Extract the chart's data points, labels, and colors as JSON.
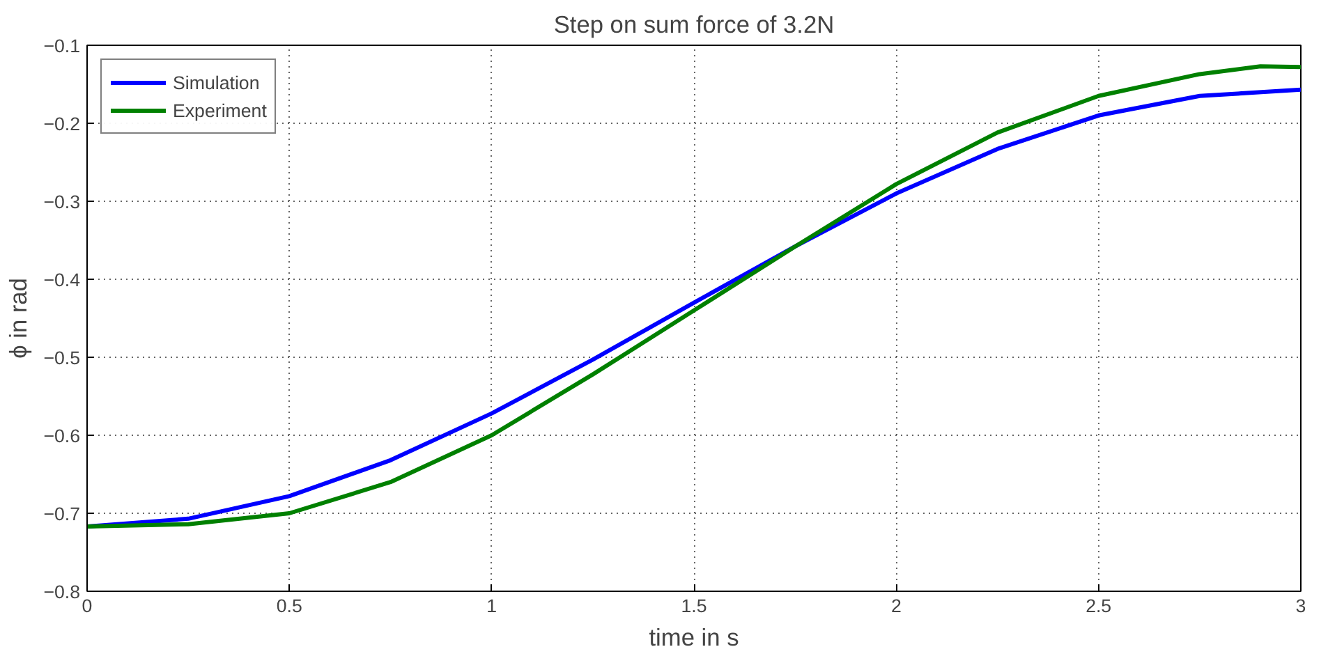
{
  "chart_data": {
    "type": "line",
    "title": "Step on sum force of 3.2N",
    "xlabel": "time in s",
    "ylabel": "ϕ in rad",
    "xlim": [
      0,
      3
    ],
    "xticks": [
      0,
      0.5,
      1,
      1.5,
      2,
      2.5,
      3
    ],
    "ylim": [
      -0.8,
      -0.1
    ],
    "yticks": [
      -0.8,
      -0.7,
      -0.6,
      -0.5,
      -0.4,
      -0.3,
      -0.2,
      -0.1
    ],
    "grid": true,
    "legend": "top left",
    "marker": "none",
    "line_style": "solid",
    "series": [
      {
        "name": "Simulation",
        "color": "#0000ff",
        "x": [
          0,
          0.25,
          0.5,
          0.75,
          1.0,
          1.25,
          1.5,
          1.75,
          2.0,
          2.25,
          2.5,
          2.75,
          3.0
        ],
        "values": [
          -0.717,
          -0.707,
          -0.678,
          -0.632,
          -0.572,
          -0.503,
          -0.43,
          -0.358,
          -0.29,
          -0.233,
          -0.19,
          -0.165,
          -0.157
        ]
      },
      {
        "name": "Experiment",
        "color": "#008000",
        "x": [
          0,
          0.25,
          0.5,
          0.75,
          1.0,
          1.25,
          1.5,
          1.75,
          2.0,
          2.25,
          2.5,
          2.75,
          2.9,
          3.0
        ],
        "values": [
          -0.717,
          -0.714,
          -0.7,
          -0.66,
          -0.6,
          -0.522,
          -0.44,
          -0.358,
          -0.278,
          -0.212,
          -0.165,
          -0.137,
          -0.127,
          -0.128
        ]
      }
    ]
  }
}
